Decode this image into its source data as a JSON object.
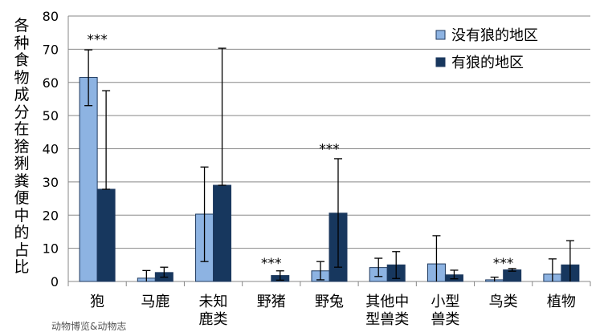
{
  "chart_data": {
    "type": "bar",
    "title": "",
    "xlabel": "",
    "ylabel": "各种食物成分在猞猁粪便中的占比",
    "ylim": [
      0,
      80
    ],
    "yticks": [
      0,
      10,
      20,
      30,
      40,
      50,
      60,
      70,
      80
    ],
    "grid": true,
    "legend_position": "top-right",
    "categories": [
      "狍",
      "马鹿",
      "未知鹿类",
      "野猪",
      "野兔",
      "其他中型兽类",
      "小型兽类",
      "鸟类",
      "植物"
    ],
    "category_lines": [
      [
        "狍"
      ],
      [
        "马鹿"
      ],
      [
        "未知",
        "鹿类"
      ],
      [
        "野猪"
      ],
      [
        "野兔"
      ],
      [
        "其他中",
        "型兽类"
      ],
      [
        "小型",
        "兽类"
      ],
      [
        "鸟类"
      ],
      [
        "植物"
      ]
    ],
    "series": [
      {
        "name": "没有狼的地区",
        "color": "#8db3e2",
        "values": [
          61.5,
          1,
          20.3,
          0,
          3.2,
          4.2,
          5.3,
          0.5,
          2.2
        ],
        "err_low": [
          53,
          0,
          6,
          0,
          0.5,
          1.5,
          0,
          0,
          0
        ],
        "err_high": [
          69.8,
          3.3,
          34.5,
          0,
          6,
          7,
          13.8,
          1.3,
          6.8
        ]
      },
      {
        "name": "有狼的地区",
        "color": "#17375e",
        "values": [
          27.8,
          2.7,
          29,
          1.8,
          20.6,
          5,
          2,
          3.5,
          5
        ],
        "err_low": [
          27.8,
          1.3,
          29,
          0.4,
          4.3,
          0.9,
          0.8,
          3.1,
          0
        ],
        "err_high": [
          57.5,
          4.3,
          70.3,
          3.2,
          37,
          9,
          3.4,
          3.9,
          12.3
        ]
      }
    ],
    "annotations": [
      {
        "category": "狍",
        "text": "***",
        "y": 73
      },
      {
        "category": "野猪",
        "text": "***",
        "y": 5.5
      },
      {
        "category": "野兔",
        "text": "***",
        "y": 40
      },
      {
        "category": "鸟类",
        "text": "***",
        "y": 5.5
      }
    ]
  },
  "watermark": "动物博览&动物志"
}
